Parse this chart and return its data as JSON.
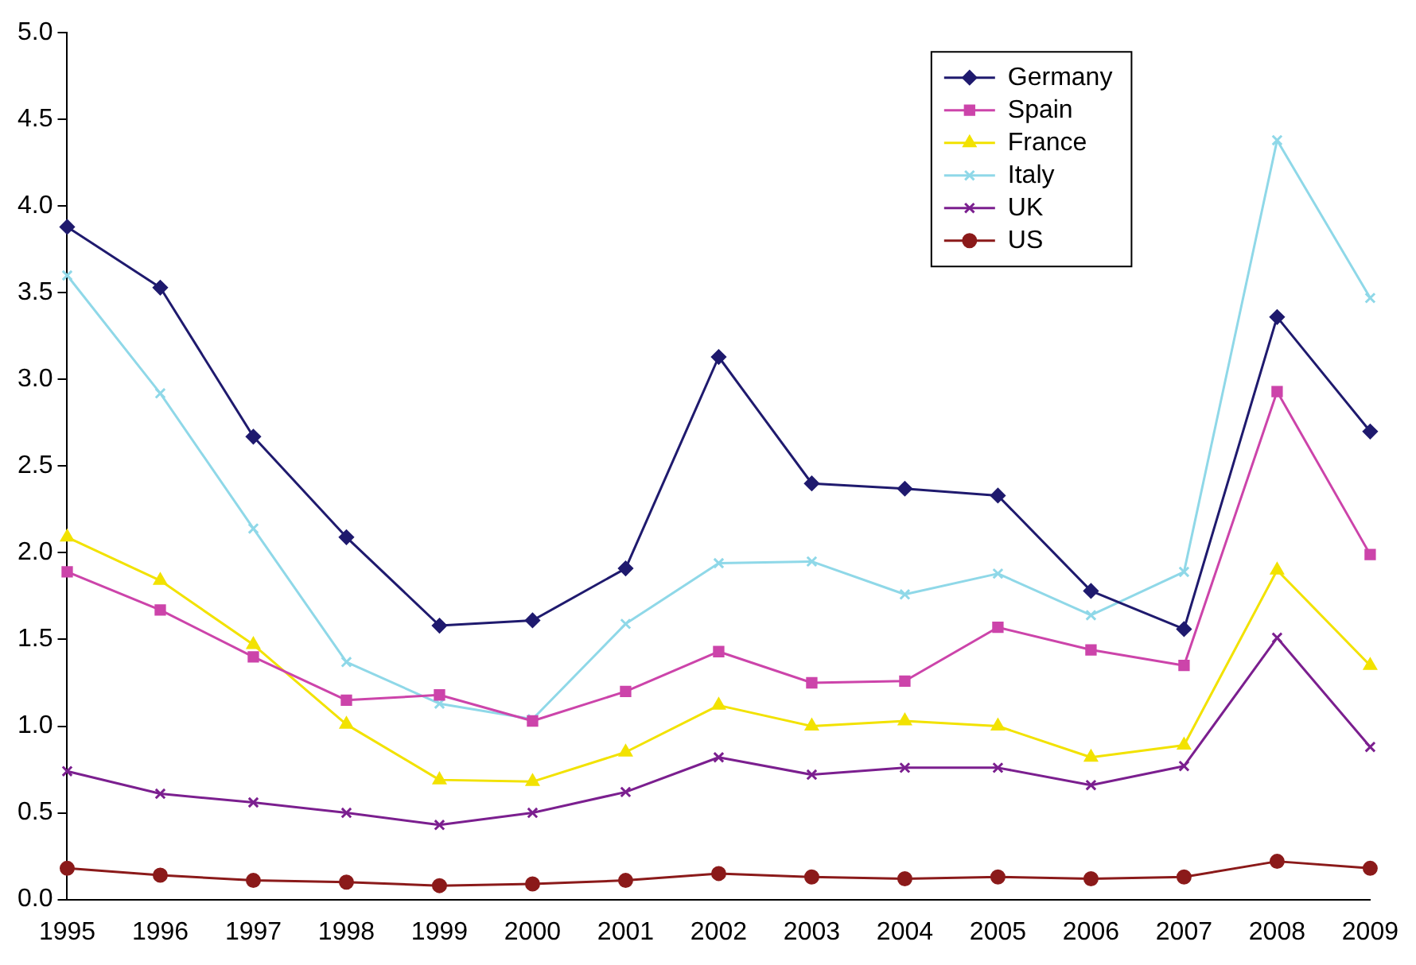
{
  "chart_data": {
    "type": "line",
    "categories": [
      "1995",
      "1996",
      "1997",
      "1998",
      "1999",
      "2000",
      "2001",
      "2002",
      "2003",
      "2004",
      "2005",
      "2006",
      "2007",
      "2008",
      "2009"
    ],
    "series": [
      {
        "name": "Germany",
        "color": "#1f1a6e",
        "marker": "diamond",
        "values": [
          3.88,
          3.53,
          2.67,
          2.09,
          1.58,
          1.61,
          1.91,
          3.13,
          2.4,
          2.37,
          2.33,
          1.78,
          1.56,
          3.36,
          2.7
        ]
      },
      {
        "name": "Spain",
        "color": "#cc44aa",
        "marker": "square",
        "values": [
          1.89,
          1.67,
          1.4,
          1.15,
          1.18,
          1.03,
          1.2,
          1.43,
          1.25,
          1.26,
          1.57,
          1.44,
          1.35,
          2.93,
          1.99
        ]
      },
      {
        "name": "France",
        "color": "#f2e200",
        "marker": "triangle",
        "values": [
          2.09,
          1.84,
          1.47,
          1.01,
          0.69,
          0.68,
          0.85,
          1.12,
          1.0,
          1.03,
          1.0,
          0.82,
          0.89,
          1.9,
          1.35
        ]
      },
      {
        "name": "Italy",
        "color": "#8fd8e8",
        "marker": "cross",
        "values": [
          3.6,
          2.92,
          2.14,
          1.37,
          1.13,
          1.04,
          1.59,
          1.94,
          1.95,
          1.76,
          1.88,
          1.64,
          1.89,
          4.38,
          3.47
        ]
      },
      {
        "name": "UK",
        "color": "#7b1f8f",
        "marker": "cross",
        "values": [
          0.74,
          0.61,
          0.56,
          0.5,
          0.43,
          0.5,
          0.62,
          0.82,
          0.72,
          0.76,
          0.76,
          0.66,
          0.77,
          1.51,
          0.88
        ]
      },
      {
        "name": "US",
        "color": "#8b1a1a",
        "marker": "circle",
        "values": [
          0.18,
          0.14,
          0.11,
          0.1,
          0.08,
          0.09,
          0.11,
          0.15,
          0.13,
          0.12,
          0.13,
          0.12,
          0.13,
          0.22,
          0.18
        ]
      }
    ],
    "ylim": [
      0,
      5
    ],
    "yticks": [
      {
        "value": 0,
        "label": "0.0"
      },
      {
        "value": 0.5,
        "label": "0.5"
      },
      {
        "value": 1,
        "label": "1.0"
      },
      {
        "value": 1.5,
        "label": "1.5"
      },
      {
        "value": 2,
        "label": "2.0"
      },
      {
        "value": 2.5,
        "label": "2.5"
      },
      {
        "value": 3,
        "label": "3.0"
      },
      {
        "value": 3.5,
        "label": "3.5"
      },
      {
        "value": 4,
        "label": "4.0"
      },
      {
        "value": 4.5,
        "label": "4.5"
      },
      {
        "value": 5,
        "label": "5.0"
      }
    ],
    "grid": false,
    "legend": "top right",
    "line_style": "solid"
  }
}
